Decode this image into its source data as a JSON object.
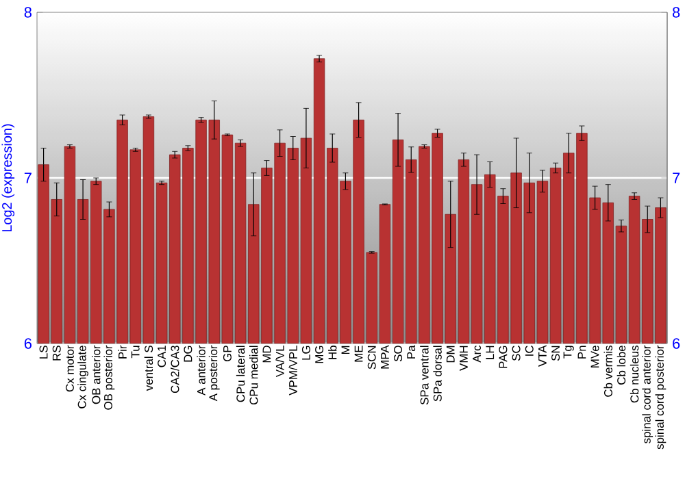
{
  "chart_data": {
    "type": "bar",
    "ylabel": "Log2 (expression)",
    "categories": [
      "LS",
      "RS",
      "Cx motor",
      "Cx cingulate",
      "OB anterior",
      "OB posterior",
      "Pir",
      "Tu",
      "ventral S",
      "CA1",
      "CA2/CA3",
      "DG",
      "A anterior",
      "A posterior",
      "GP",
      "CPu lateral",
      "CPu medial",
      "MD",
      "VA/VL",
      "VPM/VPL",
      "LG",
      "MG",
      "Hb",
      "M",
      "ME",
      "SCN",
      "MPA",
      "SO",
      "Pa",
      "SPa ventral",
      "SPa dorsal",
      "DM",
      "VMH",
      "Arc",
      "LH",
      "PAG",
      "SC",
      "IC",
      "VTA",
      "SN",
      "Tg",
      "Pn",
      "MVe",
      "Cb vermis",
      "Cb lobe",
      "Cb nucleus",
      "spinal cord anterior",
      "spinal cord posterior"
    ],
    "values": [
      7.08,
      6.87,
      7.19,
      6.87,
      6.98,
      6.81,
      7.35,
      7.17,
      7.37,
      6.97,
      7.14,
      7.18,
      7.35,
      7.35,
      7.26,
      7.21,
      6.84,
      7.06,
      7.21,
      7.18,
      7.24,
      7.72,
      7.18,
      6.98,
      7.35,
      6.55,
      6.84,
      7.23,
      7.11,
      7.19,
      7.27,
      6.78,
      7.11,
      6.96,
      7.02,
      6.89,
      7.03,
      6.97,
      6.98,
      7.06,
      7.15,
      7.27,
      6.88,
      6.85,
      6.71,
      6.89,
      6.75,
      6.82
    ],
    "errors": [
      0.1,
      0.1,
      0.01,
      0.12,
      0.02,
      0.045,
      0.03,
      0.01,
      0.01,
      0.01,
      0.02,
      0.015,
      0.015,
      0.115,
      0.005,
      0.02,
      0.19,
      0.045,
      0.08,
      0.07,
      0.18,
      0.02,
      0.085,
      0.05,
      0.105,
      0.005,
      0.003,
      0.16,
      0.077,
      0.01,
      0.024,
      0.2,
      0.04,
      0.18,
      0.077,
      0.045,
      0.21,
      0.18,
      0.066,
      0.03,
      0.12,
      0.044,
      0.07,
      0.11,
      0.036,
      0.02,
      0.08,
      0.06
    ],
    "color": "#b83232",
    "ylim": [
      6,
      8
    ],
    "yticks": [
      6,
      7,
      8
    ],
    "y2lim": [
      6,
      8
    ],
    "y2ticks": [
      6,
      7,
      8
    ],
    "grid": "y"
  }
}
